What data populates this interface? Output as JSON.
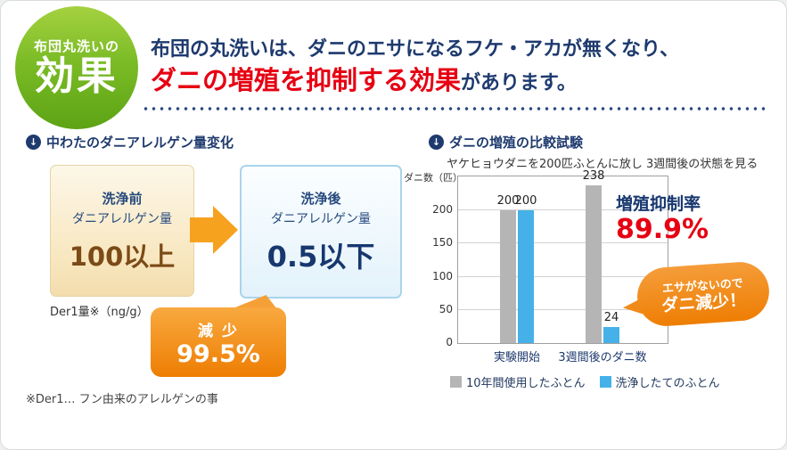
{
  "badge": {
    "top": "布団丸洗いの",
    "main": "効果"
  },
  "header": {
    "line1": "布団の丸洗いは、ダニのエサになるフケ・アカが無くなり、",
    "highlight": "ダニの増殖を抑制する効果",
    "suffix": "があります。"
  },
  "left_section": {
    "heading": "中わたのダニアレルゲン量変化",
    "before_box": {
      "line1": "洗浄前",
      "line2": "ダニアレルゲン量",
      "value": "100以上"
    },
    "after_box": {
      "line1": "洗浄後",
      "line2": "ダニアレルゲン量",
      "value": "0.5以下"
    },
    "unit_label": "Der1量※（ng/g）",
    "bubble": {
      "label": "減 少",
      "value": "99.5%"
    },
    "footnote": "※Der1… フン由来のアレルゲンの事"
  },
  "right_section": {
    "heading": "ダニの増殖の比較試験",
    "subtitle": "ヤケヒョウダニを200匹ふとんに放し 3週間後の状態を見る",
    "suppression": {
      "label": "増殖抑制率",
      "value": "89.9%"
    },
    "bubble": {
      "line1": "エサがないので",
      "line2": "ダニ減少！"
    }
  },
  "chart_data": {
    "type": "bar",
    "title": "ダニの増殖の比較試験",
    "ylabel": "ダニ数（匹）",
    "xlabel": "",
    "categories": [
      "実験開始",
      "3週間後のダニ数"
    ],
    "series": [
      {
        "name": "10年間使用したふとん",
        "color": "#b5b5b5",
        "values": [
          200,
          238
        ]
      },
      {
        "name": "洗浄したてのふとん",
        "color": "#45b1e8",
        "values": [
          200,
          24
        ]
      }
    ],
    "yticks": [
      0,
      50,
      100,
      150,
      200
    ],
    "ylim": [
      0,
      250
    ],
    "grid": true,
    "legend_position": "bottom"
  },
  "colors": {
    "accent_red": "#e60012",
    "navy": "#1e3a6e",
    "badge_green": "#76b62a",
    "orange": "#f08300",
    "bar_gray": "#b5b5b5",
    "bar_blue": "#45b1e8"
  }
}
